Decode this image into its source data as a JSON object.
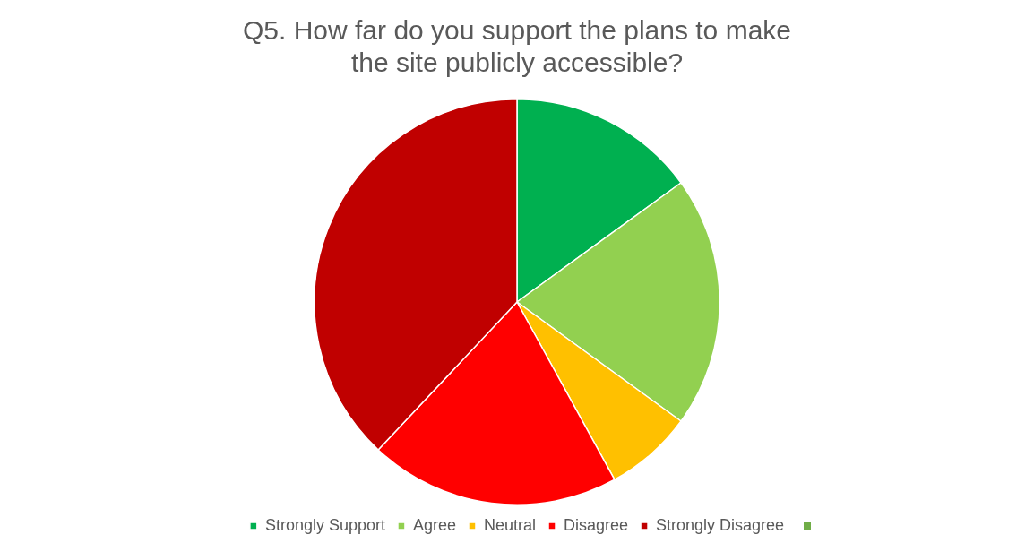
{
  "chart_data": {
    "type": "pie",
    "title": "Q5. How far do you support the plans to make the site publicly accessible?",
    "categories": [
      "Strongly Support",
      "Agree",
      "Neutral",
      "Disagree",
      "Strongly Disagree"
    ],
    "values": [
      15,
      20,
      7,
      20,
      38
    ],
    "colors": [
      "#00b050",
      "#92d050",
      "#ffc000",
      "#ff0000",
      "#c00000"
    ],
    "legend": "bottom"
  }
}
